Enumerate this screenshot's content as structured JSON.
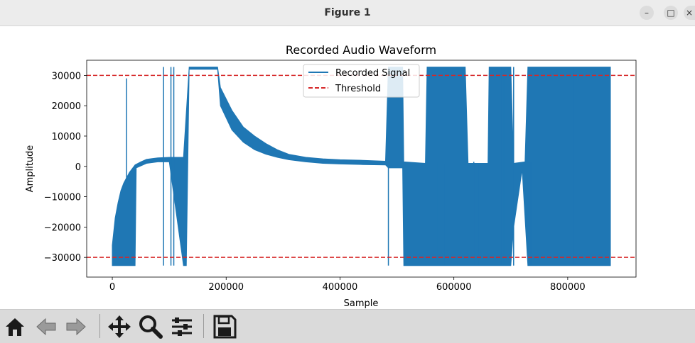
{
  "window": {
    "title": "Figure 1",
    "minimize_icon": "minimize-icon",
    "maximize_icon": "maximize-icon",
    "close_icon": "close-icon"
  },
  "toolbar": {
    "icons": [
      "home-icon",
      "back-icon",
      "forward-icon",
      "pan-icon",
      "zoom-icon",
      "configure-subplots-icon",
      "save-icon"
    ]
  },
  "colors": {
    "signal": "#1f77b4",
    "threshold": "#d62728"
  },
  "chart_data": {
    "type": "line",
    "title": "Recorded Audio Waveform",
    "xlabel": "Sample",
    "ylabel": "Amplitude",
    "xlim": [
      -45000,
      920000
    ],
    "ylim": [
      -36500,
      35000
    ],
    "xticks": [
      0,
      200000,
      400000,
      600000,
      800000
    ],
    "xtick_labels": [
      "0",
      "200000",
      "400000",
      "600000",
      "800000"
    ],
    "yticks": [
      -30000,
      -20000,
      -10000,
      0,
      10000,
      20000,
      30000
    ],
    "ytick_labels": [
      "−30000",
      "−20000",
      "−10000",
      "0",
      "10000",
      "20000",
      "30000"
    ],
    "grid": false,
    "legend": {
      "position": "top-center",
      "entries": [
        "Recorded Signal",
        "Threshold"
      ]
    },
    "series": [
      {
        "name": "Recorded Signal",
        "kind": "waveform-envelope",
        "upper": [
          [
            0,
            -26000
          ],
          [
            5000,
            -17000
          ],
          [
            10000,
            -12000
          ],
          [
            15000,
            -8000
          ],
          [
            20000,
            -5500
          ],
          [
            30000,
            -2000
          ],
          [
            40000,
            500
          ],
          [
            50000,
            1500
          ],
          [
            60000,
            2300
          ],
          [
            70000,
            2600
          ],
          [
            80000,
            2800
          ],
          [
            100000,
            3000
          ],
          [
            125000,
            3000
          ],
          [
            135000,
            32767
          ],
          [
            185000,
            32767
          ],
          [
            190000,
            26000
          ],
          [
            210000,
            18500
          ],
          [
            230000,
            13000
          ],
          [
            250000,
            10000
          ],
          [
            270000,
            7500
          ],
          [
            290000,
            5500
          ],
          [
            310000,
            4000
          ],
          [
            340000,
            3000
          ],
          [
            370000,
            2500
          ],
          [
            400000,
            2200
          ],
          [
            440000,
            2000
          ],
          [
            480000,
            1700
          ],
          [
            485000,
            32767
          ],
          [
            510000,
            32767
          ],
          [
            512000,
            1500
          ],
          [
            550000,
            1000
          ],
          [
            553000,
            32767
          ],
          [
            620000,
            32767
          ],
          [
            625000,
            1000
          ],
          [
            660000,
            1000
          ],
          [
            662000,
            32767
          ],
          [
            700000,
            32767
          ],
          [
            705000,
            1000
          ],
          [
            725000,
            1500
          ],
          [
            730000,
            32767
          ],
          [
            875000,
            32767
          ]
        ],
        "lower": [
          [
            0,
            -32700
          ],
          [
            40000,
            -32700
          ],
          [
            42000,
            -500
          ],
          [
            60000,
            1000
          ],
          [
            80000,
            1500
          ],
          [
            100000,
            1500
          ],
          [
            125000,
            -32700
          ],
          [
            130000,
            -32700
          ],
          [
            135000,
            32000
          ],
          [
            185000,
            32000
          ],
          [
            190000,
            20000
          ],
          [
            210000,
            12000
          ],
          [
            230000,
            8000
          ],
          [
            250000,
            5500
          ],
          [
            270000,
            4000
          ],
          [
            290000,
            3000
          ],
          [
            310000,
            2200
          ],
          [
            340000,
            1500
          ],
          [
            370000,
            1000
          ],
          [
            400000,
            800
          ],
          [
            440000,
            600
          ],
          [
            480000,
            500
          ],
          [
            485000,
            -500
          ],
          [
            510000,
            -500
          ],
          [
            512000,
            -32700
          ],
          [
            553000,
            -32700
          ],
          [
            620000,
            -32700
          ],
          [
            625000,
            -32700
          ],
          [
            660000,
            -32700
          ],
          [
            662000,
            -32700
          ],
          [
            690000,
            -32700
          ],
          [
            700000,
            -32700
          ],
          [
            705000,
            -20000
          ],
          [
            720000,
            -1000
          ],
          [
            730000,
            -32700
          ],
          [
            875000,
            -32700
          ]
        ],
        "spikes": [
          {
            "x": 25000,
            "min": -5000,
            "max": 29000
          },
          {
            "x": 90000,
            "min": -32700,
            "max": 32767
          },
          {
            "x": 103000,
            "min": -32700,
            "max": 32767
          },
          {
            "x": 108000,
            "min": -32700,
            "max": 32767
          },
          {
            "x": 485000,
            "min": -32700,
            "max": 1000
          },
          {
            "x": 570000,
            "min": -32700,
            "max": 1500
          },
          {
            "x": 585000,
            "min": -32700,
            "max": 1000
          },
          {
            "x": 635000,
            "min": -32700,
            "max": 1500
          },
          {
            "x": 645000,
            "min": -32700,
            "max": 1000
          },
          {
            "x": 682000,
            "min": -32700,
            "max": 32767
          },
          {
            "x": 688000,
            "min": -32700,
            "max": 32767
          },
          {
            "x": 705000,
            "min": -32700,
            "max": 32767
          },
          {
            "x": 735000,
            "min": -32700,
            "max": 1500
          },
          {
            "x": 810000,
            "min": -32700,
            "max": 32767
          },
          {
            "x": 850000,
            "min": -32700,
            "max": 32767
          }
        ]
      },
      {
        "name": "Threshold",
        "kind": "hline",
        "values": [
          30000,
          -30000
        ]
      }
    ]
  }
}
